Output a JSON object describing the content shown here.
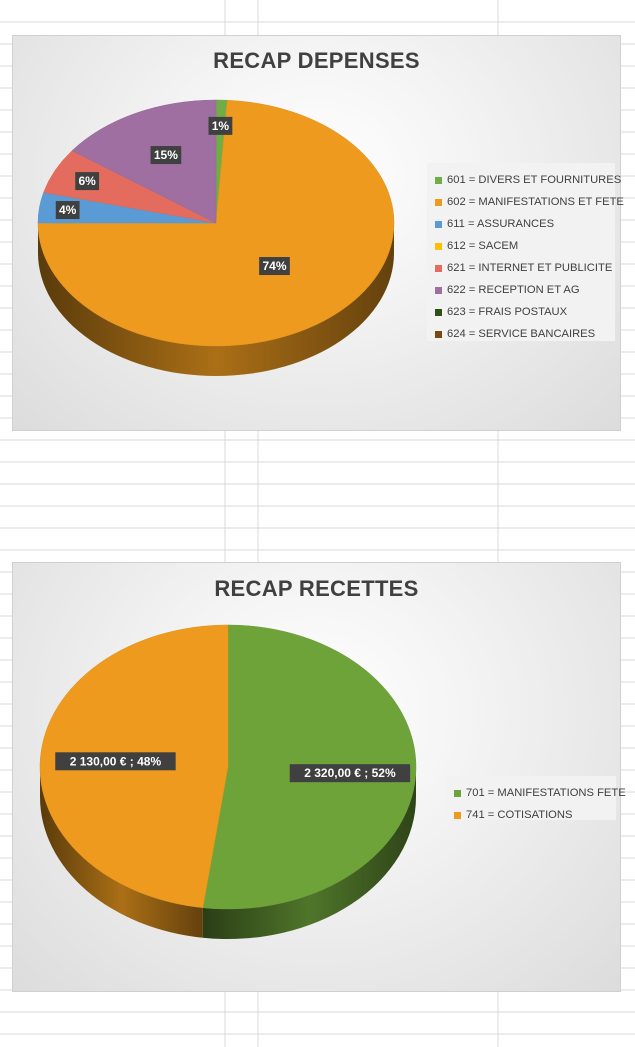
{
  "spreadsheet": {
    "rows": 48
  },
  "charts": [
    {
      "title": "RECAP DEPENSES",
      "legend_position": "right",
      "chart_data": {
        "type": "pie",
        "title": "RECAP DEPENSES",
        "categories": [
          "601 = DIVERS ET FOURNITURES",
          "602 = MANIFESTATIONS ET FETE",
          "611 = ASSURANCES",
          "612 = SACEM",
          "621 = INTERNET ET PUBLICITE",
          "622 = RECEPTION ET AG",
          "623 = FRAIS POSTAUX",
          "624 = SERVICE BANCAIRES"
        ],
        "values": [
          1,
          74,
          4,
          0,
          6,
          15,
          0,
          0
        ],
        "data_labels": [
          "1%",
          "74%",
          "4%",
          "",
          "6%",
          "15%",
          "",
          ""
        ],
        "colors": [
          "#70ad47",
          "#ed9a1e",
          "#5b9bd5",
          "#ffc000",
          "#e46c5e",
          "#9e6fa0",
          "#2d5016",
          "#7a4a12"
        ]
      }
    },
    {
      "title": "RECAP RECETTES",
      "legend_position": "right",
      "chart_data": {
        "type": "pie",
        "title": "RECAP RECETTES",
        "categories": [
          "701 = MANIFESTATIONS FETE",
          "741 = COTISATIONS"
        ],
        "values": [
          2320,
          2130
        ],
        "data_labels": [
          "2 320,00 € ; 52%",
          "2 130,00 € ; 48%"
        ],
        "colors": [
          "#6ea33a",
          "#ed9a1e"
        ]
      }
    }
  ]
}
